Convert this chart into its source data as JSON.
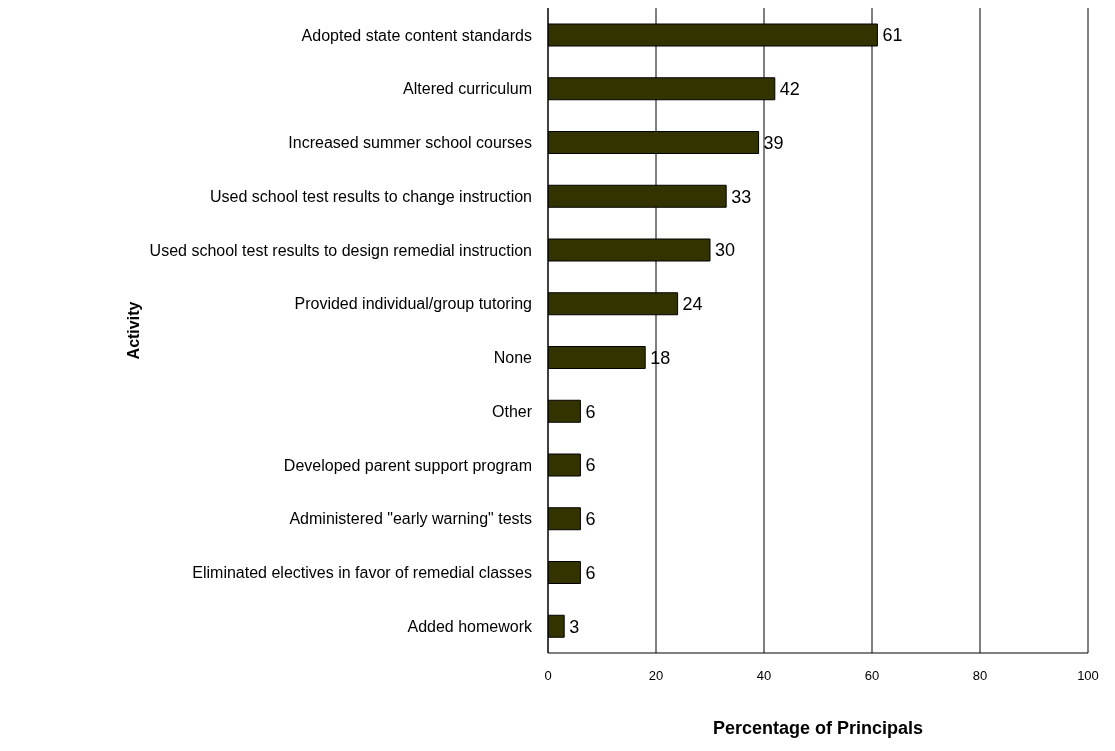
{
  "chart_data": {
    "type": "bar",
    "orientation": "horizontal",
    "xlabel": "Percentage of Principals",
    "ylabel": "Activity",
    "categories": [
      "Adopted state content standards",
      "Altered curriculum",
      "Increased summer school courses",
      "Used school test results to change instruction",
      "Used school test results to design remedial instruction",
      "Provided individual/group tutoring",
      "None",
      "Other",
      "Developed parent support program",
      "Administered \"early warning\" tests",
      "Eliminated electives in favor of remedial classes",
      "Added homework"
    ],
    "values": [
      61,
      42,
      39,
      33,
      30,
      24,
      18,
      6,
      6,
      6,
      6,
      3
    ],
    "color": "#333300",
    "xlim": [
      0,
      100
    ],
    "xticks": [
      0,
      20,
      40,
      60,
      80,
      100
    ],
    "grid": "x",
    "data_labels": true
  }
}
